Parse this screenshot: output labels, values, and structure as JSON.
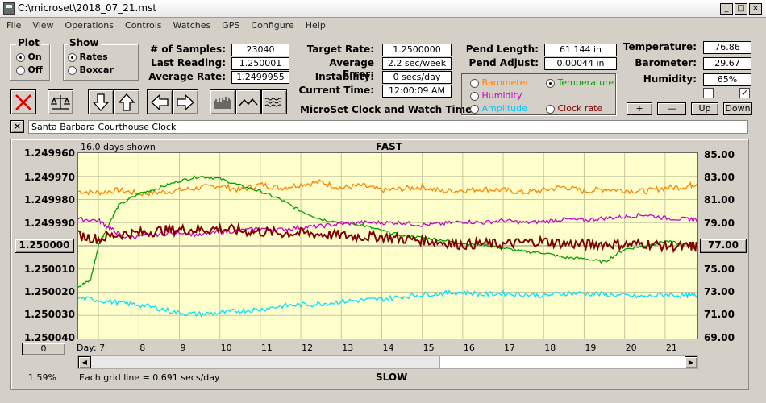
{
  "window": {
    "title": "C:\\microset\\2018_07_21.mst"
  },
  "menu": [
    "File",
    "View",
    "Operations",
    "Controls",
    "Watches",
    "GPS",
    "Configure",
    "Help"
  ],
  "plot_group": {
    "label": "Plot",
    "on": "On",
    "off": "Off",
    "selected": "On"
  },
  "show_group": {
    "label": "Show",
    "rates": "Rates",
    "boxcar": "Boxcar",
    "selected": "Rates"
  },
  "stats": {
    "samples_label": "# of Samples:",
    "samples": "23040",
    "last_label": "Last Reading:",
    "last": "1.250001",
    "avg_label": "Average Rate:",
    "avg": "1.2499955",
    "target_label": "Target Rate:",
    "target": "1.2500000",
    "error_label": "Average Error:",
    "error": "2.2 sec/week",
    "instab_label": "Instability:",
    "instab": "0 secs/day",
    "time_label": "Current Time:",
    "time": "12:00:09 AM",
    "pend_len_label": "Pend Length:",
    "pend_len": "61.144 in",
    "pend_adj_label": "Pend Adjust:",
    "pend_adj": "0.00044 in",
    "temp_label": "Temperature:",
    "temp": "76.86",
    "baro_label": "Barometer:",
    "baro": "29.67",
    "hum_label": "Humidity:",
    "hum": "65%"
  },
  "product": "MicroSet Clock and Watch Timer",
  "aux_options": [
    {
      "label": "Barometer",
      "color": "#ff8000",
      "selected": false
    },
    {
      "label": "Temperature",
      "color": "#00a000",
      "selected": true
    },
    {
      "label": "Humidity",
      "color": "#cc00cc",
      "selected": false
    },
    {
      "label": "Clock rate",
      "color": "#800000",
      "selected": false
    },
    {
      "label": "Amplitude",
      "color": "#00c8ff",
      "selected": false
    }
  ],
  "right_buttons": [
    "+",
    "—",
    "Up",
    "Down"
  ],
  "checkboxes": [
    false,
    true
  ],
  "clock_name": "Santa Barbara Courthouse Clock",
  "close_x": "×",
  "chart": {
    "days_shown": "16.0 days shown",
    "top_label": "FAST",
    "bottom_label": "SLOW",
    "grid_note": "Each grid line = 0.691 secs/day",
    "percent": "1.59%",
    "day_label": "Day:",
    "center_button": "1.250000",
    "right_center_button": "77.00",
    "zero_button": "0"
  },
  "chart_data": {
    "type": "line",
    "x_label": "Day:",
    "x_ticks": [
      7,
      8,
      9,
      10,
      11,
      12,
      13,
      14,
      15,
      16,
      17,
      18,
      19,
      20,
      21
    ],
    "xlim": [
      6.5,
      21.8
    ],
    "y_left_ticks": [
      "1.249960",
      "1.249970",
      "1.249980",
      "1.249990",
      "1.250000",
      "1.250010",
      "1.250020",
      "1.250030",
      "1.250040"
    ],
    "y_right_ticks": [
      "85.00",
      "83.00",
      "81.00",
      "79.00",
      "77.00",
      "75.00",
      "73.00",
      "71.00",
      "69.00"
    ],
    "ylim_right": [
      69,
      85
    ],
    "series": [
      {
        "color": "#ff8000",
        "x": [
          6.5,
          7,
          7.5,
          8,
          8.5,
          9,
          9.5,
          10,
          10.5,
          11,
          11.5,
          12,
          12.5,
          13,
          13.5,
          14,
          14.5,
          15,
          15.5,
          16,
          16.5,
          17,
          17.5,
          18,
          18.5,
          19,
          19.5,
          20,
          20.5,
          21,
          21.5,
          21.8
        ],
        "y": [
          81.7,
          81.6,
          81.8,
          81.5,
          81.6,
          81.8,
          82.0,
          82.2,
          81.8,
          82.3,
          82.0,
          82.3,
          82.5,
          82.0,
          82.2,
          81.8,
          81.9,
          82.1,
          81.7,
          81.8,
          81.9,
          81.8,
          81.6,
          81.8,
          82.1,
          81.7,
          81.9,
          81.8,
          81.7,
          82.0,
          82.1,
          82.4
        ]
      },
      {
        "color": "#00a000",
        "x": [
          6.5,
          6.8,
          7,
          7.2,
          7.5,
          8,
          8.5,
          9,
          9.5,
          10,
          10.5,
          11,
          11.5,
          12,
          12.5,
          13,
          13.5,
          14,
          14.5,
          15,
          15.5,
          16,
          16.5,
          17,
          17.5,
          18,
          18.5,
          19,
          19.5,
          20,
          20.5,
          21,
          21.5,
          21.8
        ],
        "y": [
          73.5,
          74.0,
          77.0,
          78.5,
          80.5,
          81.5,
          82.0,
          82.6,
          83.0,
          82.8,
          82.2,
          81.7,
          81.0,
          80.0,
          79.3,
          79.0,
          78.8,
          78.3,
          77.9,
          77.7,
          77.5,
          77.2,
          77.1,
          76.8,
          76.5,
          76.4,
          76.0,
          75.9,
          75.6,
          76.7,
          77.0,
          77.4,
          77.1,
          77.0
        ]
      },
      {
        "color": "#cc00cc",
        "x": [
          6.5,
          7,
          7.3,
          7.6,
          8,
          8.5,
          9,
          9.5,
          10,
          10.5,
          11,
          11.5,
          12,
          12.5,
          13,
          13.5,
          14,
          14.5,
          15,
          15.5,
          16,
          16.5,
          17,
          17.5,
          18,
          18.5,
          19,
          19.5,
          20,
          20.5,
          21,
          21.5,
          21.8
        ],
        "y": [
          79.3,
          79.2,
          78.5,
          77.8,
          77.8,
          78.0,
          78.2,
          77.9,
          78.2,
          78.3,
          78.5,
          78.4,
          78.6,
          78.7,
          78.9,
          79.0,
          79.0,
          79.0,
          78.8,
          78.9,
          79.1,
          79.0,
          79.2,
          79.0,
          79.1,
          79.3,
          79.2,
          79.4,
          79.5,
          79.7,
          79.4,
          79.3,
          79.3
        ]
      },
      {
        "color": "#800000",
        "x": [
          6.5,
          7,
          7.5,
          8,
          8.5,
          9,
          9.5,
          10,
          10.5,
          11,
          11.5,
          12,
          12.5,
          13,
          13.5,
          14,
          14.5,
          15,
          15.5,
          16,
          16.5,
          17,
          17.5,
          18,
          18.5,
          19,
          19.5,
          20,
          20.5,
          21,
          21.5,
          21.8
        ],
        "y": [
          77.9,
          77.6,
          78.0,
          78.1,
          78.3,
          78.4,
          78.4,
          78.5,
          78.3,
          78.2,
          78.1,
          78.1,
          78.0,
          77.9,
          77.8,
          77.8,
          77.6,
          77.5,
          77.3,
          77.1,
          77.2,
          77.1,
          77.3,
          77.4,
          77.2,
          77.1,
          77.2,
          77.1,
          77.2,
          77.0,
          76.9,
          77.0
        ]
      },
      {
        "color": "#00e0ff",
        "x": [
          6.5,
          7,
          7.5,
          8,
          8.5,
          9,
          9.5,
          10,
          10.5,
          11,
          11.5,
          12,
          12.5,
          13,
          13.5,
          14,
          14.5,
          15,
          15.5,
          16,
          16.5,
          17,
          17.5,
          18,
          18.5,
          19,
          19.5,
          20,
          20.5,
          21,
          21.5,
          21.8
        ],
        "y": [
          72.5,
          72.3,
          72.1,
          71.9,
          71.6,
          71.2,
          71.1,
          71.2,
          71.4,
          71.5,
          71.8,
          71.9,
          72.0,
          72.2,
          72.3,
          72.4,
          72.6,
          72.8,
          72.9,
          73.0,
          72.8,
          72.9,
          72.8,
          72.7,
          72.9,
          72.9,
          72.8,
          72.7,
          72.6,
          72.8,
          72.7,
          72.7
        ]
      }
    ]
  }
}
